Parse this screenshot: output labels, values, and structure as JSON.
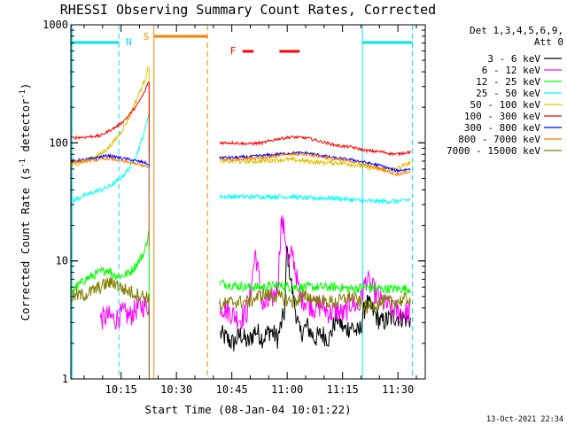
{
  "chart_data": {
    "type": "line",
    "title": "RHESSI Observing Summary Count Rates, Corrected",
    "xlabel": "Start Time (08-Jan-04 10:01:22)",
    "ylabel_main": "Corrected Count Rate (s",
    "ylabel_sup1": "-1",
    "ylabel_mid": " detector",
    "ylabel_sup2": "-1",
    "ylabel_end": ")",
    "y_scale": "log",
    "ylim": [
      1,
      1000
    ],
    "xlim_minutes": [
      0,
      96
    ],
    "y_ticks": [
      "1",
      "10",
      "100",
      "1000"
    ],
    "x_ticks": [
      {
        "label": "10:15",
        "min": 13.6
      },
      {
        "label": "10:30",
        "min": 28.6
      },
      {
        "label": "10:45",
        "min": 43.6
      },
      {
        "label": "11:00",
        "min": 58.6
      },
      {
        "label": "11:15",
        "min": 73.6
      },
      {
        "label": "11:30",
        "min": 88.6
      }
    ],
    "legend_header": [
      "Det 1,3,4,5,6,9,",
      "Att 0"
    ],
    "legend_position": "right",
    "series": [
      {
        "name": "3 - 6 keV",
        "color": "#000000",
        "x": [
          40.5,
          44,
          46,
          48,
          50,
          52,
          54,
          56,
          58,
          58.5,
          60,
          62,
          64,
          66,
          68,
          70,
          72,
          74,
          76,
          78,
          80,
          84,
          88,
          92
        ],
        "values": [
          2.4,
          2.0,
          2.4,
          2.0,
          2.6,
          2.2,
          2.6,
          2.2,
          3.8,
          13,
          5.5,
          2.4,
          2.8,
          2.2,
          2.4,
          2.2,
          3.4,
          2.6,
          2.8,
          2.4,
          4.5,
          3.0,
          3.4,
          3.2
        ]
      },
      {
        "name": "6 - 12 keV",
        "color": "#ff00ff",
        "x": [
          8,
          10,
          12,
          14,
          16,
          18,
          20,
          40.5,
          44,
          46,
          48,
          50,
          52,
          54,
          56,
          57,
          58,
          59,
          60,
          62,
          64,
          66,
          68,
          70,
          72,
          74,
          76,
          78,
          80,
          84,
          88,
          92
        ],
        "values": [
          3.2,
          3.4,
          3.2,
          3.6,
          3.4,
          4.0,
          4.2,
          4.2,
          3.5,
          3.2,
          3.8,
          12,
          4.0,
          4.5,
          6.0,
          22,
          17,
          9,
          12,
          5,
          4.5,
          4.0,
          4.2,
          3.6,
          3.8,
          3.5,
          4.5,
          4.0,
          7.0,
          4.5,
          3.8,
          3.6
        ]
      },
      {
        "name": "12 - 25 keV",
        "color": "#00ff00",
        "x": [
          0,
          4,
          8,
          10,
          12,
          14,
          16,
          18,
          20,
          21,
          40.5,
          44,
          48,
          52,
          56,
          60,
          64,
          68,
          72,
          76,
          80,
          84,
          88,
          92
        ],
        "values": [
          5.5,
          7.0,
          8.0,
          8.5,
          7.5,
          7.5,
          8.0,
          9.5,
          12,
          17,
          6.5,
          6.2,
          6.0,
          6.0,
          6.2,
          6.0,
          6.0,
          6.0,
          6.0,
          5.8,
          6.0,
          5.8,
          5.8,
          5.8
        ]
      },
      {
        "name": "25 - 50 keV",
        "color": "#00ffff",
        "x": [
          0,
          4,
          8,
          10,
          12,
          14,
          16,
          18,
          20,
          21,
          40.5,
          44,
          48,
          52,
          56,
          60,
          64,
          68,
          72,
          76,
          80,
          84,
          88,
          92
        ],
        "values": [
          32,
          36,
          40,
          42,
          46,
          52,
          62,
          82,
          125,
          175,
          35,
          35,
          35,
          35,
          35,
          35,
          34,
          34,
          34,
          33,
          32,
          32,
          32,
          33
        ]
      },
      {
        "name": "50 - 100 keV",
        "color": "#e0c000",
        "x": [
          0,
          4,
          8,
          10,
          12,
          14,
          16,
          18,
          20,
          21,
          40.5,
          44,
          48,
          52,
          56,
          60,
          64,
          68,
          72,
          76,
          80,
          84,
          88,
          92
        ],
        "values": [
          65,
          70,
          80,
          90,
          105,
          130,
          170,
          240,
          340,
          440,
          70,
          70,
          70,
          70,
          72,
          72,
          70,
          68,
          68,
          66,
          62,
          60,
          60,
          68
        ]
      },
      {
        "name": "100 - 300 keV",
        "color": "#ff0000",
        "x": [
          0,
          4,
          8,
          10,
          12,
          14,
          16,
          18,
          20,
          21,
          40.5,
          44,
          48,
          52,
          56,
          60,
          64,
          68,
          72,
          76,
          80,
          84,
          88,
          92
        ],
        "values": [
          110,
          112,
          115,
          125,
          135,
          150,
          175,
          210,
          270,
          330,
          100,
          100,
          98,
          100,
          108,
          112,
          110,
          102,
          95,
          92,
          86,
          84,
          80,
          84
        ]
      },
      {
        "name": "300 - 800 keV",
        "color": "#0000ff",
        "x": [
          0,
          4,
          8,
          10,
          12,
          14,
          16,
          18,
          20,
          21,
          40.5,
          44,
          48,
          52,
          56,
          60,
          64,
          68,
          72,
          76,
          80,
          84,
          88,
          92
        ],
        "values": [
          70,
          72,
          76,
          78,
          76,
          74,
          72,
          70,
          68,
          66,
          75,
          75,
          76,
          78,
          80,
          82,
          82,
          78,
          74,
          72,
          68,
          64,
          58,
          60
        ]
      },
      {
        "name": "800 - 7000 keV",
        "color": "#ff8000",
        "x": [
          0,
          4,
          8,
          10,
          12,
          14,
          16,
          18,
          20,
          21,
          40.5,
          44,
          48,
          52,
          56,
          60,
          64,
          68,
          72,
          76,
          80,
          84,
          88,
          92
        ],
        "values": [
          68,
          70,
          72,
          74,
          72,
          70,
          68,
          66,
          64,
          62,
          72,
          72,
          74,
          75,
          78,
          80,
          80,
          76,
          72,
          70,
          65,
          60,
          54,
          57
        ]
      },
      {
        "name": "7000 - 15000 keV",
        "color": "#808000",
        "x": [
          0,
          4,
          8,
          10,
          12,
          14,
          16,
          18,
          20,
          21,
          40.5,
          44,
          48,
          52,
          56,
          60,
          64,
          68,
          72,
          76,
          80,
          84,
          88,
          92
        ],
        "values": [
          5.0,
          5.2,
          6.0,
          6.5,
          6.5,
          5.8,
          5.5,
          5.2,
          5.0,
          5.0,
          4.2,
          4.5,
          4.5,
          5.2,
          5.0,
          4.5,
          5.0,
          4.5,
          4.5,
          5.0,
          4.0,
          4.5,
          4.5,
          4.8
        ]
      }
    ],
    "annotations": {
      "night": {
        "label": "N",
        "color": "#00e5ee",
        "spans": [
          {
            "start": 0,
            "end": 13
          },
          {
            "start": 79,
            "end": 92.5
          }
        ],
        "dashed_lines": [
          13,
          92.5
        ],
        "solid_lines": [
          79
        ]
      },
      "saa": {
        "label": "S",
        "color": "#ff8000",
        "spans": [
          {
            "start": 22.5,
            "end": 37
          }
        ],
        "solid_lines": [
          22.5
        ],
        "dashed_lines": [
          37
        ]
      },
      "flare": {
        "label": "F",
        "color": "#ff0000",
        "spans": [
          {
            "start": 46.5,
            "end": 49.5
          },
          {
            "start": 56.5,
            "end": 62
          }
        ]
      }
    },
    "grid": false
  },
  "footer": {
    "timestamp": "13-Oct-2021 22:34"
  }
}
